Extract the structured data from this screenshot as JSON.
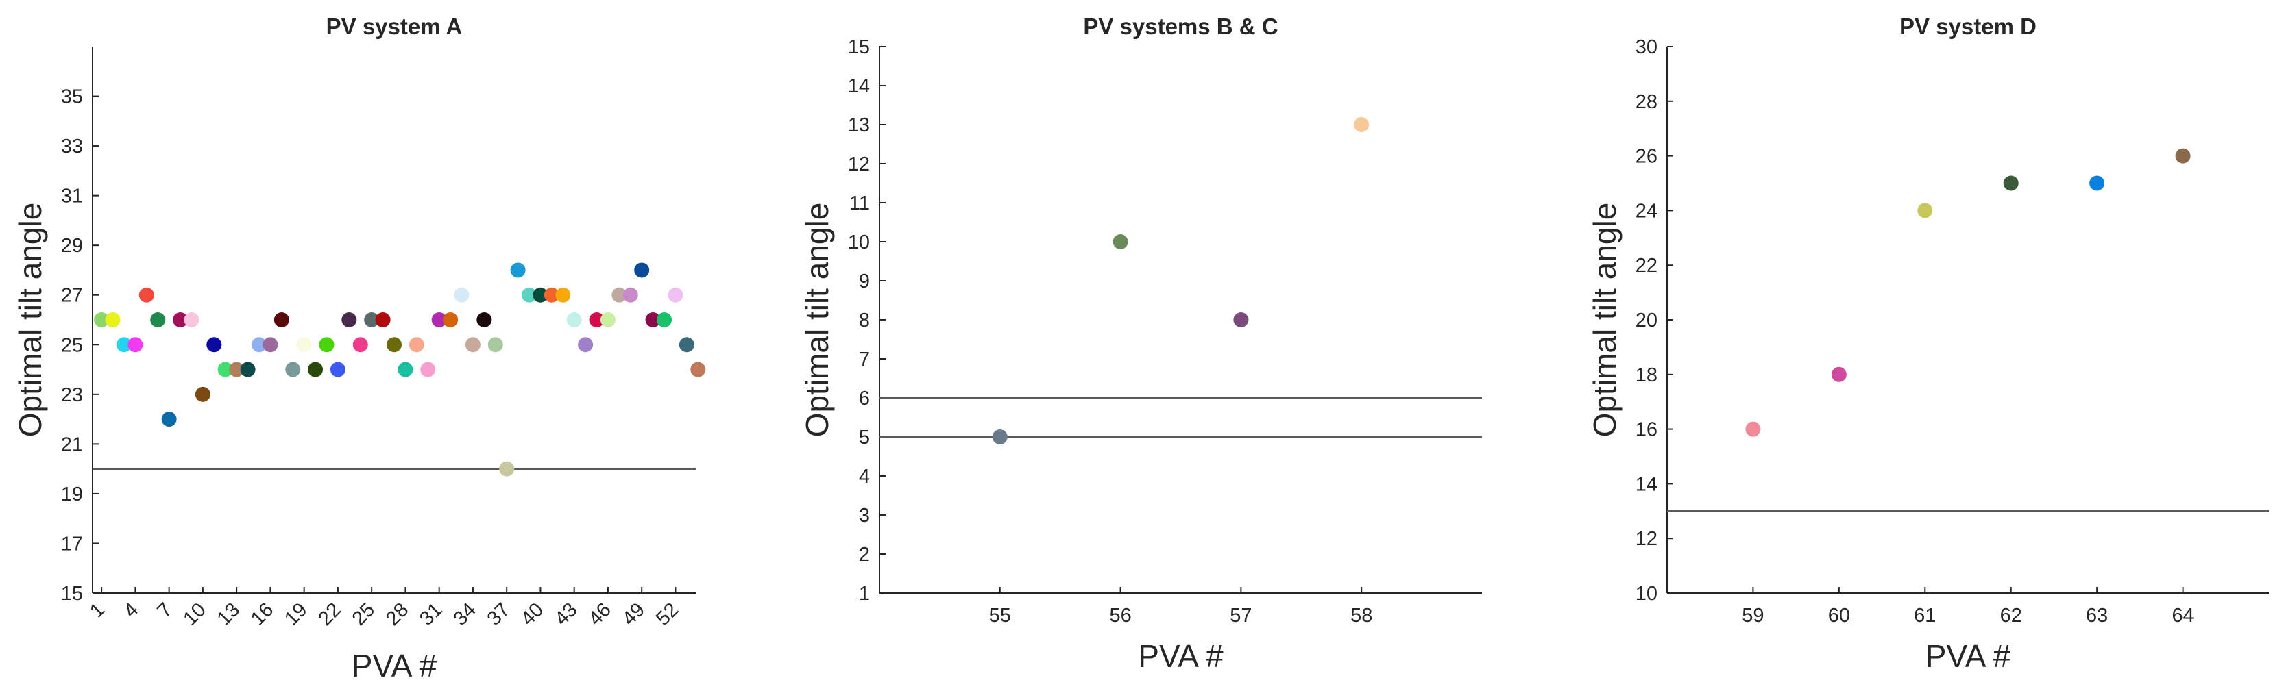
{
  "chart_data": [
    {
      "type": "scatter",
      "title": "PV system A",
      "xlabel": "PVA #",
      "ylabel": "Optimal tilt angle",
      "ylim": [
        15,
        37
      ],
      "yticks": [
        15,
        17,
        19,
        21,
        23,
        25,
        27,
        29,
        31,
        33,
        35
      ],
      "xlim": [
        0.2,
        53.8
      ],
      "xticks": [
        1,
        4,
        7,
        10,
        13,
        16,
        19,
        22,
        25,
        28,
        31,
        34,
        37,
        40,
        43,
        46,
        49,
        52
      ],
      "xtick_rotation": -45,
      "hlines": [
        20
      ],
      "grid": false,
      "points": [
        {
          "x": 1,
          "y": 26,
          "color": "#8ad66a"
        },
        {
          "x": 2,
          "y": 26,
          "color": "#e6f21a"
        },
        {
          "x": 3,
          "y": 25,
          "color": "#22d4f0"
        },
        {
          "x": 4,
          "y": 25,
          "color": "#f03cf0"
        },
        {
          "x": 5,
          "y": 27,
          "color": "#f24a3c"
        },
        {
          "x": 6,
          "y": 26,
          "color": "#1f8a4c"
        },
        {
          "x": 7,
          "y": 22,
          "color": "#0b6aa8"
        },
        {
          "x": 8,
          "y": 26,
          "color": "#a3105a"
        },
        {
          "x": 9,
          "y": 26,
          "color": "#f7c6de"
        },
        {
          "x": 10,
          "y": 23,
          "color": "#7a4a12"
        },
        {
          "x": 11,
          "y": 25,
          "color": "#0a0aa0"
        },
        {
          "x": 12,
          "y": 24,
          "color": "#40e070"
        },
        {
          "x": 13,
          "y": 24,
          "color": "#b0825a"
        },
        {
          "x": 14,
          "y": 24,
          "color": "#0f4a4a"
        },
        {
          "x": 15,
          "y": 25,
          "color": "#8fb0f0"
        },
        {
          "x": 16,
          "y": 25,
          "color": "#9a6a9a"
        },
        {
          "x": 17,
          "y": 26,
          "color": "#5a0a0a"
        },
        {
          "x": 18,
          "y": 24,
          "color": "#7a9a9a"
        },
        {
          "x": 19,
          "y": 25,
          "color": "#fafae0"
        },
        {
          "x": 20,
          "y": 24,
          "color": "#2a4a0a"
        },
        {
          "x": 21,
          "y": 25,
          "color": "#4ad40a"
        },
        {
          "x": 22,
          "y": 24,
          "color": "#3a5af0"
        },
        {
          "x": 23,
          "y": 26,
          "color": "#4a2a4a"
        },
        {
          "x": 24,
          "y": 25,
          "color": "#f03a8a"
        },
        {
          "x": 25,
          "y": 26,
          "color": "#5a6a6a"
        },
        {
          "x": 26,
          "y": 26,
          "color": "#b00a0a"
        },
        {
          "x": 27,
          "y": 25,
          "color": "#6a6a0a"
        },
        {
          "x": 28,
          "y": 24,
          "color": "#1ac0a0"
        },
        {
          "x": 29,
          "y": 25,
          "color": "#f7a88a"
        },
        {
          "x": 30,
          "y": 24,
          "color": "#f7a0d0"
        },
        {
          "x": 31,
          "y": 26,
          "color": "#b02ab0"
        },
        {
          "x": 32,
          "y": 26,
          "color": "#d4640a"
        },
        {
          "x": 33,
          "y": 27,
          "color": "#d4eaf7"
        },
        {
          "x": 34,
          "y": 25,
          "color": "#c8a898"
        },
        {
          "x": 35,
          "y": 26,
          "color": "#1a0a0a"
        },
        {
          "x": 36,
          "y": 25,
          "color": "#a8c8a0"
        },
        {
          "x": 37,
          "y": 20,
          "color": "#c8c8a0"
        },
        {
          "x": 38,
          "y": 28,
          "color": "#1a9ad4"
        },
        {
          "x": 39,
          "y": 27,
          "color": "#5ad4c0"
        },
        {
          "x": 40,
          "y": 27,
          "color": "#0a4a3a"
        },
        {
          "x": 41,
          "y": 27,
          "color": "#f0642a"
        },
        {
          "x": 42,
          "y": 27,
          "color": "#f7a80a"
        },
        {
          "x": 43,
          "y": 26,
          "color": "#c0f0e8"
        },
        {
          "x": 44,
          "y": 25,
          "color": "#a080c8"
        },
        {
          "x": 45,
          "y": 26,
          "color": "#d40a4a"
        },
        {
          "x": 46,
          "y": 26,
          "color": "#c8f0a0"
        },
        {
          "x": 47,
          "y": 27,
          "color": "#c0a8a0"
        },
        {
          "x": 48,
          "y": 27,
          "color": "#c88ac8"
        },
        {
          "x": 49,
          "y": 28,
          "color": "#0a4a9a"
        },
        {
          "x": 50,
          "y": 26,
          "color": "#8a0a4a"
        },
        {
          "x": 51,
          "y": 26,
          "color": "#1ac06a"
        },
        {
          "x": 52,
          "y": 27,
          "color": "#f0c0f0"
        },
        {
          "x": 53,
          "y": 25,
          "color": "#3a6a7a"
        },
        {
          "x": 54,
          "y": 24,
          "color": "#c07a5a"
        }
      ]
    },
    {
      "type": "scatter",
      "title": "PV systems B & C",
      "xlabel": "PVA #",
      "ylabel": "Optimal tilt angle",
      "ylim": [
        1,
        15
      ],
      "yticks": [
        1,
        2,
        3,
        4,
        5,
        6,
        7,
        8,
        9,
        10,
        11,
        12,
        13,
        14,
        15
      ],
      "xlim": [
        54,
        59
      ],
      "xticks": [
        55,
        56,
        57,
        58
      ],
      "xtick_rotation": 0,
      "hlines": [
        5,
        6
      ],
      "grid": false,
      "points": [
        {
          "x": 55,
          "y": 5,
          "color": "#6a7a8a"
        },
        {
          "x": 56,
          "y": 10,
          "color": "#6a8a5a"
        },
        {
          "x": 57,
          "y": 8,
          "color": "#7a4a7a"
        },
        {
          "x": 58,
          "y": 13,
          "color": "#f7c898"
        }
      ]
    },
    {
      "type": "scatter",
      "title": "PV system D",
      "xlabel": "PVA #",
      "ylabel": "Optimal tilt angle",
      "ylim": [
        10,
        30
      ],
      "yticks": [
        10,
        12,
        14,
        16,
        18,
        20,
        22,
        24,
        26,
        28,
        30
      ],
      "xlim": [
        58,
        65
      ],
      "xticks": [
        59,
        60,
        61,
        62,
        63,
        64
      ],
      "xtick_rotation": 0,
      "hlines": [
        13
      ],
      "grid": false,
      "points": [
        {
          "x": 59,
          "y": 16,
          "color": "#f08a98"
        },
        {
          "x": 60,
          "y": 18,
          "color": "#d04aa0"
        },
        {
          "x": 61,
          "y": 24,
          "color": "#c8c85a"
        },
        {
          "x": 62,
          "y": 25,
          "color": "#3a5a3a"
        },
        {
          "x": 63,
          "y": 25,
          "color": "#0a80e0"
        },
        {
          "x": 64,
          "y": 26,
          "color": "#8a6a4a"
        }
      ]
    }
  ]
}
